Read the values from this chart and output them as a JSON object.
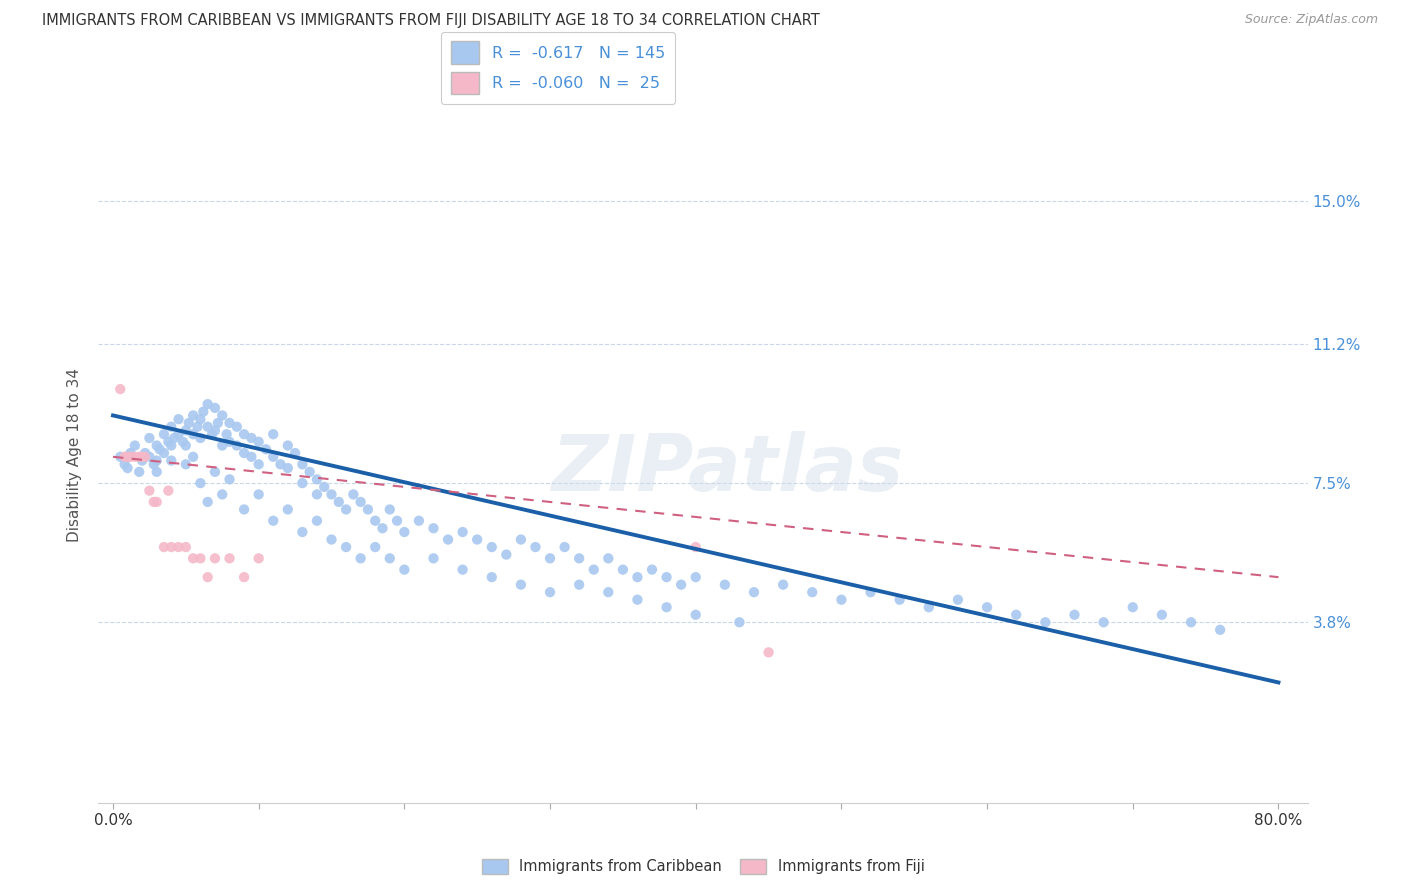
{
  "title": "IMMIGRANTS FROM CARIBBEAN VS IMMIGRANTS FROM FIJI DISABILITY AGE 18 TO 34 CORRELATION CHART",
  "source": "Source: ZipAtlas.com",
  "ylabel": "Disability Age 18 to 34",
  "ytick_labels": [
    "15.0%",
    "11.2%",
    "7.5%",
    "3.8%"
  ],
  "ytick_values": [
    0.15,
    0.112,
    0.075,
    0.038
  ],
  "xlim": [
    -0.01,
    0.82
  ],
  "ylim": [
    -0.01,
    0.175
  ],
  "caribbean_R": "-0.617",
  "caribbean_N": "145",
  "fiji_R": "-0.060",
  "fiji_N": "25",
  "caribbean_color": "#a8c8f0",
  "caribbean_line_color": "#1a5fa8",
  "fiji_color": "#f5b8c8",
  "fiji_line_color": "#d06080",
  "watermark": "ZIPatlas",
  "caribbean_scatter_x": [
    0.005,
    0.008,
    0.01,
    0.012,
    0.015,
    0.018,
    0.02,
    0.022,
    0.025,
    0.025,
    0.028,
    0.03,
    0.03,
    0.03,
    0.032,
    0.035,
    0.035,
    0.038,
    0.04,
    0.04,
    0.04,
    0.042,
    0.045,
    0.045,
    0.048,
    0.05,
    0.05,
    0.052,
    0.055,
    0.055,
    0.058,
    0.06,
    0.06,
    0.062,
    0.065,
    0.065,
    0.068,
    0.07,
    0.07,
    0.072,
    0.075,
    0.075,
    0.078,
    0.08,
    0.08,
    0.085,
    0.085,
    0.09,
    0.09,
    0.095,
    0.095,
    0.1,
    0.1,
    0.105,
    0.11,
    0.11,
    0.115,
    0.12,
    0.12,
    0.125,
    0.13,
    0.13,
    0.135,
    0.14,
    0.14,
    0.145,
    0.15,
    0.155,
    0.16,
    0.165,
    0.17,
    0.175,
    0.18,
    0.185,
    0.19,
    0.195,
    0.2,
    0.21,
    0.22,
    0.23,
    0.24,
    0.25,
    0.26,
    0.27,
    0.28,
    0.29,
    0.3,
    0.31,
    0.32,
    0.33,
    0.34,
    0.35,
    0.36,
    0.37,
    0.38,
    0.39,
    0.4,
    0.42,
    0.44,
    0.46,
    0.48,
    0.5,
    0.52,
    0.54,
    0.56,
    0.58,
    0.6,
    0.62,
    0.64,
    0.66,
    0.68,
    0.7,
    0.72,
    0.74,
    0.76,
    0.05,
    0.055,
    0.06,
    0.065,
    0.07,
    0.075,
    0.08,
    0.09,
    0.1,
    0.11,
    0.12,
    0.13,
    0.14,
    0.15,
    0.16,
    0.17,
    0.18,
    0.19,
    0.2,
    0.22,
    0.24,
    0.26,
    0.28,
    0.3,
    0.32,
    0.34,
    0.36,
    0.38,
    0.4,
    0.43
  ],
  "caribbean_scatter_y": [
    0.082,
    0.08,
    0.079,
    0.083,
    0.085,
    0.078,
    0.081,
    0.083,
    0.087,
    0.082,
    0.08,
    0.085,
    0.081,
    0.078,
    0.084,
    0.088,
    0.083,
    0.086,
    0.09,
    0.085,
    0.081,
    0.087,
    0.092,
    0.088,
    0.086,
    0.089,
    0.085,
    0.091,
    0.093,
    0.088,
    0.09,
    0.092,
    0.087,
    0.094,
    0.096,
    0.09,
    0.088,
    0.095,
    0.089,
    0.091,
    0.085,
    0.093,
    0.088,
    0.091,
    0.086,
    0.09,
    0.085,
    0.088,
    0.083,
    0.087,
    0.082,
    0.086,
    0.08,
    0.084,
    0.088,
    0.082,
    0.08,
    0.085,
    0.079,
    0.083,
    0.08,
    0.075,
    0.078,
    0.076,
    0.072,
    0.074,
    0.072,
    0.07,
    0.068,
    0.072,
    0.07,
    0.068,
    0.065,
    0.063,
    0.068,
    0.065,
    0.062,
    0.065,
    0.063,
    0.06,
    0.062,
    0.06,
    0.058,
    0.056,
    0.06,
    0.058,
    0.055,
    0.058,
    0.055,
    0.052,
    0.055,
    0.052,
    0.05,
    0.052,
    0.05,
    0.048,
    0.05,
    0.048,
    0.046,
    0.048,
    0.046,
    0.044,
    0.046,
    0.044,
    0.042,
    0.044,
    0.042,
    0.04,
    0.038,
    0.04,
    0.038,
    0.042,
    0.04,
    0.038,
    0.036,
    0.08,
    0.082,
    0.075,
    0.07,
    0.078,
    0.072,
    0.076,
    0.068,
    0.072,
    0.065,
    0.068,
    0.062,
    0.065,
    0.06,
    0.058,
    0.055,
    0.058,
    0.055,
    0.052,
    0.055,
    0.052,
    0.05,
    0.048,
    0.046,
    0.048,
    0.046,
    0.044,
    0.042,
    0.04,
    0.038
  ],
  "fiji_scatter_x": [
    0.005,
    0.008,
    0.01,
    0.012,
    0.015,
    0.018,
    0.02,
    0.022,
    0.025,
    0.028,
    0.03,
    0.035,
    0.038,
    0.04,
    0.045,
    0.05,
    0.055,
    0.06,
    0.065,
    0.07,
    0.08,
    0.09,
    0.1,
    0.4,
    0.45
  ],
  "fiji_scatter_y": [
    0.1,
    0.082,
    0.082,
    0.082,
    0.082,
    0.082,
    0.082,
    0.082,
    0.073,
    0.07,
    0.07,
    0.058,
    0.073,
    0.058,
    0.058,
    0.058,
    0.055,
    0.055,
    0.05,
    0.055,
    0.055,
    0.05,
    0.055,
    0.058,
    0.03
  ],
  "caribbean_trendline_x": [
    0.0,
    0.8
  ],
  "caribbean_trendline_y": [
    0.093,
    0.022
  ],
  "fiji_trendline_x": [
    0.0,
    0.8
  ],
  "fiji_trendline_y": [
    0.082,
    0.05
  ]
}
